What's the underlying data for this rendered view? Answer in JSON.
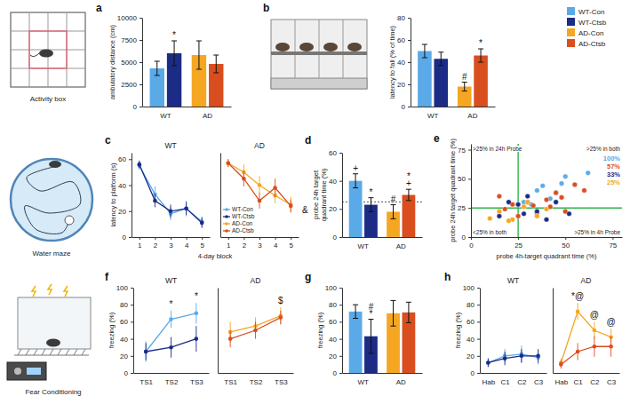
{
  "illustrations": [
    {
      "label": "Activity box"
    },
    {
      "label": "Water maze"
    },
    {
      "label": "Fear Conditioning"
    }
  ],
  "chart_data": [
    {
      "type": "bar",
      "title": "a",
      "y_label": "ambulatory distance (cm)",
      "categories": [
        "WT",
        "AD"
      ],
      "ylim": [
        0,
        10000
      ],
      "yticks": [
        0,
        2500,
        5000,
        7500,
        10000
      ],
      "series": [
        {
          "name": "WT-Con",
          "color": "#5aaae8",
          "values": [
            4300,
            null
          ],
          "error": [
            800,
            null
          ]
        },
        {
          "name": "WT-Ctsb",
          "color": "#1c2b85",
          "values": [
            6000,
            null
          ],
          "error": [
            1400,
            null
          ],
          "annotations": [
            [
              "*"
            ],
            null
          ]
        },
        {
          "name": "AD-Con",
          "color": "#f5a623",
          "values": [
            null,
            5800
          ],
          "error": [
            null,
            1600
          ]
        },
        {
          "name": "AD-Ctsb",
          "color": "#d94e1f",
          "values": [
            null,
            4800
          ],
          "error": [
            null,
            1000
          ]
        }
      ]
    },
    {
      "type": "bar",
      "title": "b",
      "y_label": "latency to fall (% of time)",
      "categories": [
        "WT",
        "AD"
      ],
      "ylim": [
        0,
        80
      ],
      "yticks": [
        0,
        20,
        40,
        60,
        80
      ],
      "legend": "right",
      "series": [
        {
          "name": "WT-Con",
          "color": "#5aaae8",
          "values": [
            50,
            null
          ],
          "error": [
            6,
            null
          ]
        },
        {
          "name": "WT-Ctsb",
          "color": "#1c2b85",
          "values": [
            43,
            null
          ],
          "error": [
            6,
            null
          ]
        },
        {
          "name": "AD-Con",
          "color": "#f5a623",
          "values": [
            null,
            18
          ],
          "error": [
            null,
            4
          ],
          "annotations": [
            null,
            [
              "#"
            ]
          ]
        },
        {
          "name": "AD-Ctsb",
          "color": "#d94e1f",
          "values": [
            null,
            46
          ],
          "error": [
            null,
            6
          ],
          "annotations": [
            null,
            [
              "*"
            ]
          ]
        }
      ]
    },
    {
      "type": "line",
      "title": "c",
      "x_label": "4-day block",
      "y_label": "latency to platform (s)",
      "ylim": [
        0,
        65
      ],
      "yticks": [
        0,
        20,
        40,
        60
      ],
      "xlim": [
        0.5,
        5.5
      ],
      "xticks": [
        1,
        2,
        3,
        4,
        5
      ],
      "legend": "lower left",
      "annotation": "&",
      "subplots": [
        {
          "title": "WT",
          "x": [
            1,
            2,
            3,
            4,
            5
          ],
          "series": [
            {
              "name": "WT-Con",
              "color": "#5aaae8",
              "values": [
                55,
                33,
                18,
                22,
                12
              ],
              "error": [
                3,
                6,
                5,
                6,
                4
              ]
            },
            {
              "name": "WT-Ctsb",
              "color": "#1c2b85",
              "values": [
                56,
                28,
                20,
                22,
                11
              ],
              "error": [
                3,
                5,
                5,
                5,
                4
              ]
            }
          ]
        },
        {
          "title": "AD",
          "x": [
            1,
            2,
            3,
            4,
            5
          ],
          "series": [
            {
              "name": "AD-Con",
              "color": "#f5a623",
              "values": [
                57,
                50,
                40,
                32,
                25
              ],
              "error": [
                3,
                6,
                7,
                6,
                6
              ]
            },
            {
              "name": "AD-Ctsb",
              "color": "#d94e1f",
              "values": [
                57,
                45,
                28,
                38,
                24
              ],
              "error": [
                3,
                6,
                6,
                7,
                5
              ]
            }
          ]
        }
      ]
    },
    {
      "type": "bar",
      "title": "d",
      "y_label": "probe 24h target quadrant time (%)",
      "categories": [
        "WT",
        "AD"
      ],
      "ylim": [
        0,
        60
      ],
      "yticks": [
        0,
        20,
        40,
        60
      ],
      "reference_line": 25,
      "series": [
        {
          "name": "WT-Con",
          "color": "#5aaae8",
          "values": [
            40,
            null
          ],
          "error": [
            5,
            null
          ],
          "annotations": [
            [
              "+"
            ],
            null
          ]
        },
        {
          "name": "WT-Ctsb",
          "color": "#1c2b85",
          "values": [
            23,
            null
          ],
          "error": [
            5,
            null
          ],
          "annotations": [
            [
              "*"
            ],
            null
          ]
        },
        {
          "name": "AD-Con",
          "color": "#f5a623",
          "values": [
            null,
            18
          ],
          "error": [
            null,
            5
          ],
          "annotations": [
            null,
            [
              "#"
            ]
          ]
        },
        {
          "name": "AD-Ctsb",
          "color": "#d94e1f",
          "values": [
            null,
            30
          ],
          "error": [
            null,
            4
          ],
          "annotations": [
            null,
            [
              "*",
              "+"
            ]
          ]
        }
      ]
    },
    {
      "type": "scatter",
      "title": "e",
      "x_label": "probe 4h-target quadrant time (%)",
      "y_label": "probe 24h target quadrant time (%)",
      "xlim": [
        0,
        80
      ],
      "xticks": [
        0,
        25,
        50,
        75
      ],
      "ylim": [
        0,
        80
      ],
      "yticks": [
        0,
        25,
        50,
        75
      ],
      "reference_lines": {
        "x": 25,
        "y": 25
      },
      "corner_labels": {
        "top_left": ">25% in 24h Probe",
        "top_right": ">25% in both",
        "bottom_left": "<25% in both",
        "bottom_right": ">25% in 4h Probe"
      },
      "series": [
        {
          "name": "WT-Con",
          "color": "#5aaae8",
          "percent_both": {
            "value": 100,
            "label": "100%"
          },
          "x": [
            28,
            35,
            42,
            48,
            55,
            62,
            45,
            38,
            32,
            50
          ],
          "y": [
            30,
            40,
            33,
            46,
            45,
            55,
            38,
            44,
            28,
            52
          ]
        },
        {
          "name": "AD-Ctsb",
          "color": "#d94e1f",
          "percent_both": {
            "value": 57,
            "label": "57%"
          },
          "x": [
            15,
            22,
            30,
            35,
            40,
            45,
            50,
            55,
            25,
            60,
            33,
            18,
            42,
            48
          ],
          "y": [
            35,
            28,
            30,
            20,
            32,
            38,
            22,
            45,
            18,
            40,
            27,
            24,
            26,
            34
          ]
        },
        {
          "name": "WT-Ctsb",
          "color": "#1c2b85",
          "percent_both": {
            "value": 33,
            "label": "33%"
          },
          "x": [
            15,
            20,
            28,
            30,
            35,
            40,
            45,
            52,
            25
          ],
          "y": [
            18,
            30,
            20,
            35,
            22,
            15,
            30,
            20,
            28
          ]
        },
        {
          "name": "AD-Con",
          "color": "#f5a623",
          "percent_both": {
            "value": 25,
            "label": "25%"
          },
          "x": [
            10,
            15,
            22,
            28,
            35,
            20,
            40,
            30
          ],
          "y": [
            16,
            22,
            15,
            26,
            18,
            14,
            24,
            30
          ]
        }
      ]
    },
    {
      "type": "line",
      "title": "f",
      "y_label": "freezing (%)",
      "ylim": [
        0,
        100
      ],
      "yticks": [
        0,
        20,
        40,
        60,
        80,
        100
      ],
      "subplots": [
        {
          "title": "WT",
          "categories": [
            "TS1",
            "TS2",
            "TS3"
          ],
          "annotations": [
            null,
            [
              "*"
            ],
            [
              "*"
            ]
          ],
          "series": [
            {
              "name": "WT-Con",
              "color": "#5aaae8",
              "values": [
                25,
                63,
                70
              ],
              "error": [
                12,
                10,
                12
              ]
            },
            {
              "name": "WT-Ctsb",
              "color": "#1c2b85",
              "values": [
                25,
                30,
                40
              ],
              "error": [
                10,
                12,
                15
              ]
            }
          ]
        },
        {
          "title": "AD",
          "categories": [
            "TS1",
            "TS2",
            "TS3"
          ],
          "annotations": [
            null,
            null,
            [
              "$"
            ]
          ],
          "series": [
            {
              "name": "AD-Con",
              "color": "#f5a623",
              "values": [
                48,
                55,
                67
              ],
              "error": [
                12,
                10,
                10
              ]
            },
            {
              "name": "AD-Ctsb",
              "color": "#d94e1f",
              "values": [
                40,
                50,
                65
              ],
              "error": [
                10,
                10,
                8
              ]
            }
          ]
        }
      ]
    },
    {
      "type": "bar",
      "title": "g",
      "y_label": "freezing (%)",
      "categories": [
        "WT",
        "AD"
      ],
      "ylim": [
        0,
        100
      ],
      "yticks": [
        0,
        20,
        40,
        60,
        80,
        100
      ],
      "series": [
        {
          "name": "WT-Con",
          "color": "#5aaae8",
          "values": [
            72,
            null
          ],
          "error": [
            8,
            null
          ]
        },
        {
          "name": "WT-Ctsb",
          "color": "#1c2b85",
          "values": [
            43,
            null
          ],
          "error": [
            20,
            null
          ],
          "annotations": [
            [
              "#",
              "*"
            ],
            null
          ]
        },
        {
          "name": "AD-Con",
          "color": "#f5a623",
          "values": [
            null,
            70
          ],
          "error": [
            null,
            15
          ]
        },
        {
          "name": "AD-Ctsb",
          "color": "#d94e1f",
          "values": [
            null,
            71
          ],
          "error": [
            null,
            12
          ]
        }
      ]
    },
    {
      "type": "line",
      "title": "h",
      "y_label": "freezing (%)",
      "ylim": [
        0,
        100
      ],
      "yticks": [
        0,
        20,
        40,
        60,
        80,
        100
      ],
      "subplots": [
        {
          "title": "WT",
          "categories": [
            "Hab",
            "C1",
            "C2",
            "C3"
          ],
          "series": [
            {
              "name": "WT-Con",
              "color": "#5aaae8",
              "values": [
                12,
                20,
                22,
                18
              ],
              "error": [
                5,
                8,
                10,
                8
              ]
            },
            {
              "name": "WT-Ctsb",
              "color": "#1c2b85",
              "values": [
                12,
                17,
                20,
                20
              ],
              "error": [
                5,
                8,
                8,
                8
              ]
            }
          ]
        },
        {
          "title": "AD",
          "categories": [
            "Hab",
            "C1",
            "C2",
            "C3"
          ],
          "annotations": [
            null,
            [
              "*@"
            ],
            [
              "@"
            ],
            [
              "@"
            ]
          ],
          "series": [
            {
              "name": "AD-Con",
              "color": "#f5a623",
              "values": [
                12,
                72,
                50,
                42
              ],
              "error": [
                5,
                10,
                10,
                10
              ]
            },
            {
              "name": "AD-Ctsb",
              "color": "#d94e1f",
              "values": [
                10,
                25,
                31,
                31
              ],
              "error": [
                5,
                10,
                12,
                12
              ]
            }
          ]
        }
      ]
    }
  ]
}
